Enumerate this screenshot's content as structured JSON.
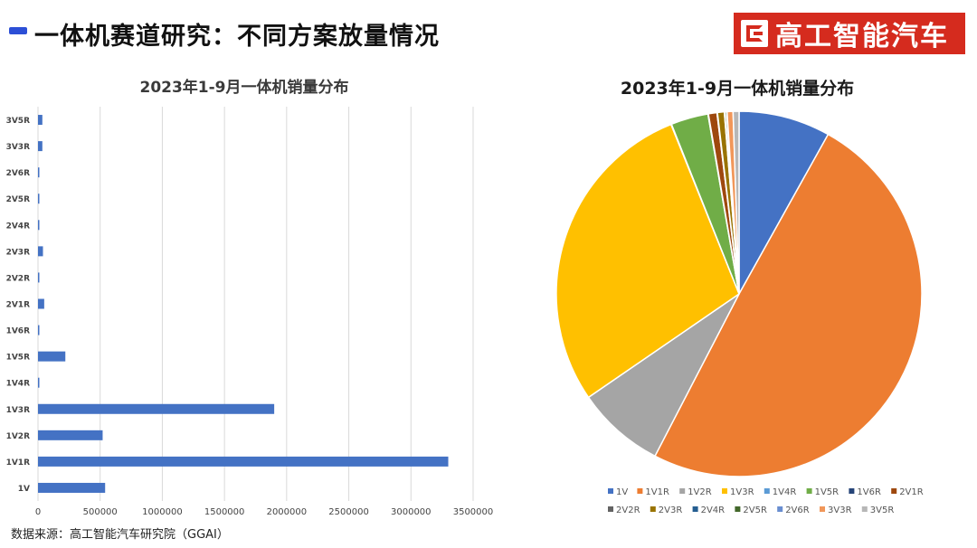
{
  "header": {
    "title": "一体机赛道研究：不同方案放量情况",
    "brand": "高工智能汽车",
    "accent_color": "#2c4fd6",
    "brand_color": "#d52b1e"
  },
  "footer": {
    "source": "数据来源：高工智能汽车研究院（GGAI）"
  },
  "chart_data": [
    {
      "type": "bar",
      "orientation": "horizontal",
      "title": "2023年1-9月一体机销量分布",
      "categories": [
        "1V",
        "1V1R",
        "1V2R",
        "1V3R",
        "1V4R",
        "1V5R",
        "1V6R",
        "2V1R",
        "2V2R",
        "2V3R",
        "2V4R",
        "2V5R",
        "2V6R",
        "3V3R",
        "3V5R"
      ],
      "values": [
        540000,
        3300000,
        520000,
        1900000,
        3000,
        220000,
        3000,
        50000,
        3000,
        40000,
        3000,
        10000,
        3000,
        35000,
        35000
      ],
      "xlim": [
        0,
        3500000
      ],
      "xticks": [
        "0",
        "500000",
        "1000000",
        "1500000",
        "2000000",
        "2500000",
        "3000000",
        "3500000"
      ],
      "grid": true,
      "color": "#4472c4"
    },
    {
      "type": "pie",
      "title": "2023年1-9月一体机销量分布",
      "categories": [
        "1V",
        "1V1R",
        "1V2R",
        "1V3R",
        "1V4R",
        "1V5R",
        "1V6R",
        "2V1R",
        "2V2R",
        "2V3R",
        "2V4R",
        "2V5R",
        "2V6R",
        "3V3R",
        "3V5R"
      ],
      "values": [
        540000,
        3300000,
        520000,
        1900000,
        3000,
        220000,
        3000,
        50000,
        3000,
        40000,
        3000,
        10000,
        3000,
        35000,
        35000
      ],
      "colors": [
        "#4472c4",
        "#ed7d31",
        "#a5a5a5",
        "#ffc000",
        "#5b9bd5",
        "#70ad47",
        "#264478",
        "#9e480e",
        "#636363",
        "#997300",
        "#255e91",
        "#43682b",
        "#698ed0",
        "#f1975a",
        "#b7b7b7"
      ],
      "legend_position": "bottom"
    }
  ]
}
